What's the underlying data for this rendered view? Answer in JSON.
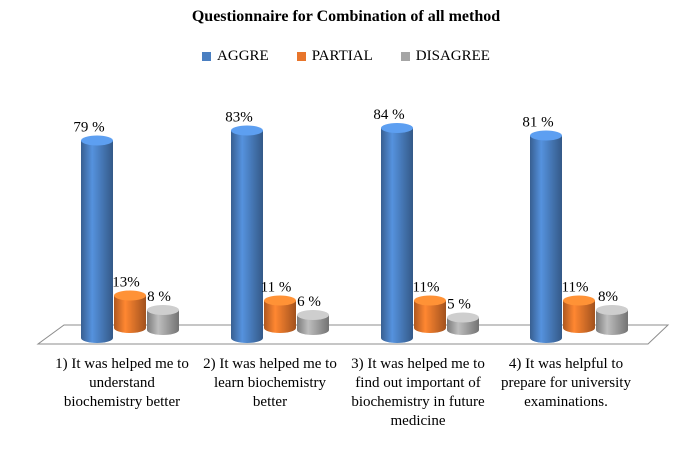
{
  "chart_data": {
    "type": "bar",
    "title": "Questionnaire for Combination of all method",
    "categories": [
      "1)\tIt was helped me to understand biochemistry better",
      "2)\tIt was helped me to learn biochemistry better",
      "3)\tIt was helped me to find out important of biochemistry in future medicine",
      "4)\tIt was helpful to prepare for university examinations."
    ],
    "series": [
      {
        "name": "AGGRE",
        "color": "#4a7fc1",
        "values": [
          79,
          83,
          84,
          81
        ],
        "labels": [
          "79 %",
          "83%",
          "84 %",
          "81 %"
        ]
      },
      {
        "name": "PARTIAL",
        "color": "#e8752b",
        "values": [
          13,
          11,
          11,
          11
        ],
        "labels": [
          "13%",
          "11 %",
          "11%",
          "11%"
        ]
      },
      {
        "name": "DISAGREE",
        "color": "#a5a5a5",
        "values": [
          8,
          6,
          5,
          8
        ],
        "labels": [
          "8 %",
          "6 %",
          "5 %",
          "8%"
        ]
      }
    ],
    "ylim": [
      0,
      100
    ],
    "legend_position": "top",
    "grid": false
  }
}
